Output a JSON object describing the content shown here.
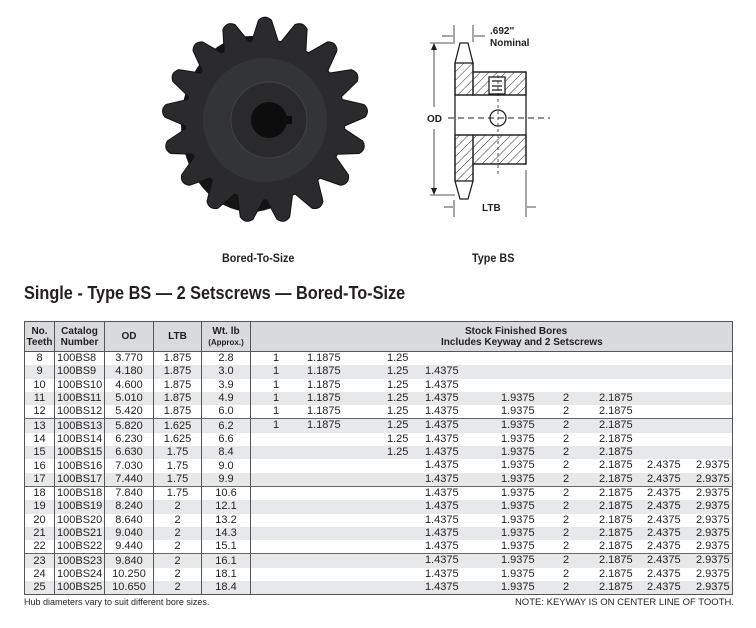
{
  "images": {
    "photo_caption": "Bored-To-Size",
    "diagram_caption": "Type BS",
    "diagram_labels": {
      "width_dim": ".692\"",
      "width_note": "Nominal",
      "od": "OD",
      "ltb": "LTB"
    }
  },
  "title": "Single - Type BS — 2 Setscrews — Bored-To-Size",
  "table": {
    "headers": {
      "teeth": [
        "No.",
        "Teeth"
      ],
      "catalog": [
        "Catalog",
        "Number"
      ],
      "od": "OD",
      "ltb": "LTB",
      "wt": [
        "Wt. lb",
        "(Approx.)"
      ],
      "bores": [
        "Stock Finished Bores",
        "Includes Keyway and 2 Setscrews"
      ]
    },
    "rows": [
      {
        "teeth": "8",
        "catalog": "100BS8",
        "od": "3.770",
        "ltb": "1.875",
        "wt": "2.8",
        "bores": [
          "1",
          "1.1875",
          "1.25",
          "",
          "",
          "",
          "",
          "",
          ""
        ]
      },
      {
        "teeth": "9",
        "catalog": "100BS9",
        "od": "4.180",
        "ltb": "1.875",
        "wt": "3.0",
        "bores": [
          "1",
          "1.1875",
          "1.25",
          "1.4375",
          "",
          "",
          "",
          "",
          ""
        ]
      },
      {
        "teeth": "10",
        "catalog": "100BS10",
        "od": "4.600",
        "ltb": "1.875",
        "wt": "3.9",
        "bores": [
          "1",
          "1.1875",
          "1.25",
          "1.4375",
          "",
          "",
          "",
          "",
          ""
        ]
      },
      {
        "teeth": "11",
        "catalog": "100BS11",
        "od": "5.010",
        "ltb": "1.875",
        "wt": "4.9",
        "bores": [
          "1",
          "1.1875",
          "1.25",
          "1.4375",
          "1.9375",
          "2",
          "2.1875",
          "",
          ""
        ]
      },
      {
        "teeth": "12",
        "catalog": "100BS12",
        "od": "5.420",
        "ltb": "1.875",
        "wt": "6.0",
        "bores": [
          "1",
          "1.1875",
          "1.25",
          "1.4375",
          "1.9375",
          "2",
          "2.1875",
          "",
          ""
        ]
      },
      {
        "teeth": "13",
        "catalog": "100BS13",
        "od": "5.820",
        "ltb": "1.625",
        "wt": "6.2",
        "bores": [
          "1",
          "1.1875",
          "1.25",
          "1.4375",
          "1.9375",
          "2",
          "2.1875",
          "",
          ""
        ]
      },
      {
        "teeth": "14",
        "catalog": "100BS14",
        "od": "6.230",
        "ltb": "1.625",
        "wt": "6.6",
        "bores": [
          "",
          "",
          "1.25",
          "1.4375",
          "1.9375",
          "2",
          "2.1875",
          "",
          ""
        ]
      },
      {
        "teeth": "15",
        "catalog": "100BS15",
        "od": "6.630",
        "ltb": "1.75",
        "wt": "8.4",
        "bores": [
          "",
          "",
          "1.25",
          "1.4375",
          "1.9375",
          "2",
          "2.1875",
          "",
          ""
        ]
      },
      {
        "teeth": "16",
        "catalog": "100BS16",
        "od": "7.030",
        "ltb": "1.75",
        "wt": "9.0",
        "bores": [
          "",
          "",
          "",
          "1.4375",
          "1.9375",
          "2",
          "2.1875",
          "2.4375",
          "2.9375"
        ]
      },
      {
        "teeth": "17",
        "catalog": "100BS17",
        "od": "7.440",
        "ltb": "1.75",
        "wt": "9.9",
        "bores": [
          "",
          "",
          "",
          "1.4375",
          "1.9375",
          "2",
          "2.1875",
          "2.4375",
          "2.9375"
        ]
      },
      {
        "teeth": "18",
        "catalog": "100BS18",
        "od": "7.840",
        "ltb": "1.75",
        "wt": "10.6",
        "bores": [
          "",
          "",
          "",
          "1.4375",
          "1.9375",
          "2",
          "2.1875",
          "2.4375",
          "2.9375"
        ]
      },
      {
        "teeth": "19",
        "catalog": "100BS19",
        "od": "8.240",
        "ltb": "2",
        "wt": "12.1",
        "bores": [
          "",
          "",
          "",
          "1.4375",
          "1.9375",
          "2",
          "2.1875",
          "2.4375",
          "2.9375"
        ]
      },
      {
        "teeth": "20",
        "catalog": "100BS20",
        "od": "8.640",
        "ltb": "2",
        "wt": "13.2",
        "bores": [
          "",
          "",
          "",
          "1.4375",
          "1.9375",
          "2",
          "2.1875",
          "2.4375",
          "2.9375"
        ]
      },
      {
        "teeth": "21",
        "catalog": "100BS21",
        "od": "9.040",
        "ltb": "2",
        "wt": "14.3",
        "bores": [
          "",
          "",
          "",
          "1.4375",
          "1.9375",
          "2",
          "2.1875",
          "2.4375",
          "2.9375"
        ]
      },
      {
        "teeth": "22",
        "catalog": "100BS22",
        "od": "9.440",
        "ltb": "2",
        "wt": "15.1",
        "bores": [
          "",
          "",
          "",
          "1.4375",
          "1.9375",
          "2",
          "2.1875",
          "2.4375",
          "2.9375"
        ]
      },
      {
        "teeth": "23",
        "catalog": "100BS23",
        "od": "9.840",
        "ltb": "2",
        "wt": "16.1",
        "bores": [
          "",
          "",
          "",
          "1.4375",
          "1.9375",
          "2",
          "2.1875",
          "2.4375",
          "2.9375"
        ]
      },
      {
        "teeth": "24",
        "catalog": "100BS24",
        "od": "10.250",
        "ltb": "2",
        "wt": "18.1",
        "bores": [
          "",
          "",
          "",
          "1.4375",
          "1.9375",
          "2",
          "2.1875",
          "2.4375",
          "2.9375"
        ]
      },
      {
        "teeth": "25",
        "catalog": "100BS25",
        "od": "10.650",
        "ltb": "2",
        "wt": "18.4",
        "bores": [
          "",
          "",
          "",
          "1.4375",
          "1.9375",
          "2",
          "2.1875",
          "2.4375",
          "2.9375"
        ]
      }
    ]
  },
  "footnotes": {
    "left": "Hub diameters vary to suit different bore sizes.",
    "right": "NOTE: KEYWAY IS ON CENTER LINE OF TOOTH."
  }
}
